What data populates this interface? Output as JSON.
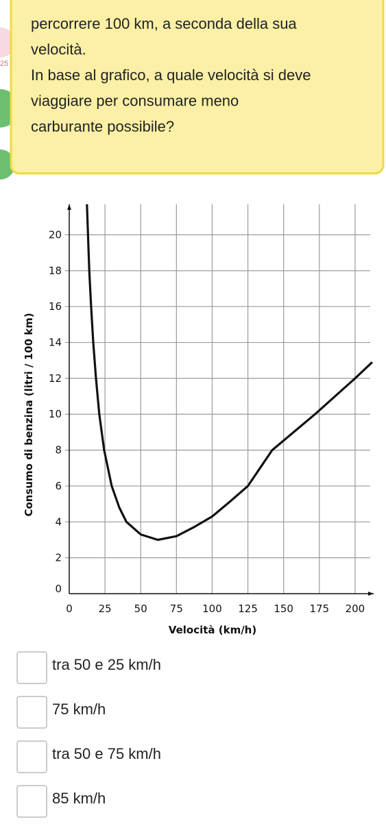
{
  "sidebar": {
    "badge": "25"
  },
  "question": {
    "lines": [
      "percorrere 100 km, a seconda della sua",
      "velocità.",
      "In base al grafico, a quale velocità si deve",
      "viaggiare per consumare meno",
      "carburante possibile?"
    ]
  },
  "chart_data": {
    "type": "line",
    "xlabel": "Velocità (km/h)",
    "ylabel": "Consumo di benzina (litri / 100 km)",
    "x": [
      12.4,
      14,
      15.3,
      16.8,
      18.7,
      21,
      24.4,
      29.7,
      35,
      40,
      50,
      62,
      75,
      87,
      100,
      112,
      125,
      142,
      157,
      172,
      186,
      200,
      212
    ],
    "values": [
      21.7,
      18,
      16,
      14,
      12,
      10,
      8,
      6,
      4.8,
      4,
      3.3,
      3,
      3.2,
      3.7,
      4.3,
      5.1,
      6,
      8,
      9,
      10,
      11,
      12,
      12.9
    ],
    "color": "#111111",
    "xlim": [
      0,
      213
    ],
    "ylim": [
      0,
      21.7
    ],
    "xticks": [
      0,
      25,
      50,
      75,
      100,
      125,
      150,
      175,
      200
    ],
    "yticks": [
      0,
      2,
      4,
      6,
      8,
      10,
      12,
      14,
      16,
      18,
      20
    ],
    "grid": true
  },
  "options": [
    "tra 50 e 25 km/h",
    "75 km/h",
    "tra 50 e 75 km/h",
    "85 km/h"
  ]
}
